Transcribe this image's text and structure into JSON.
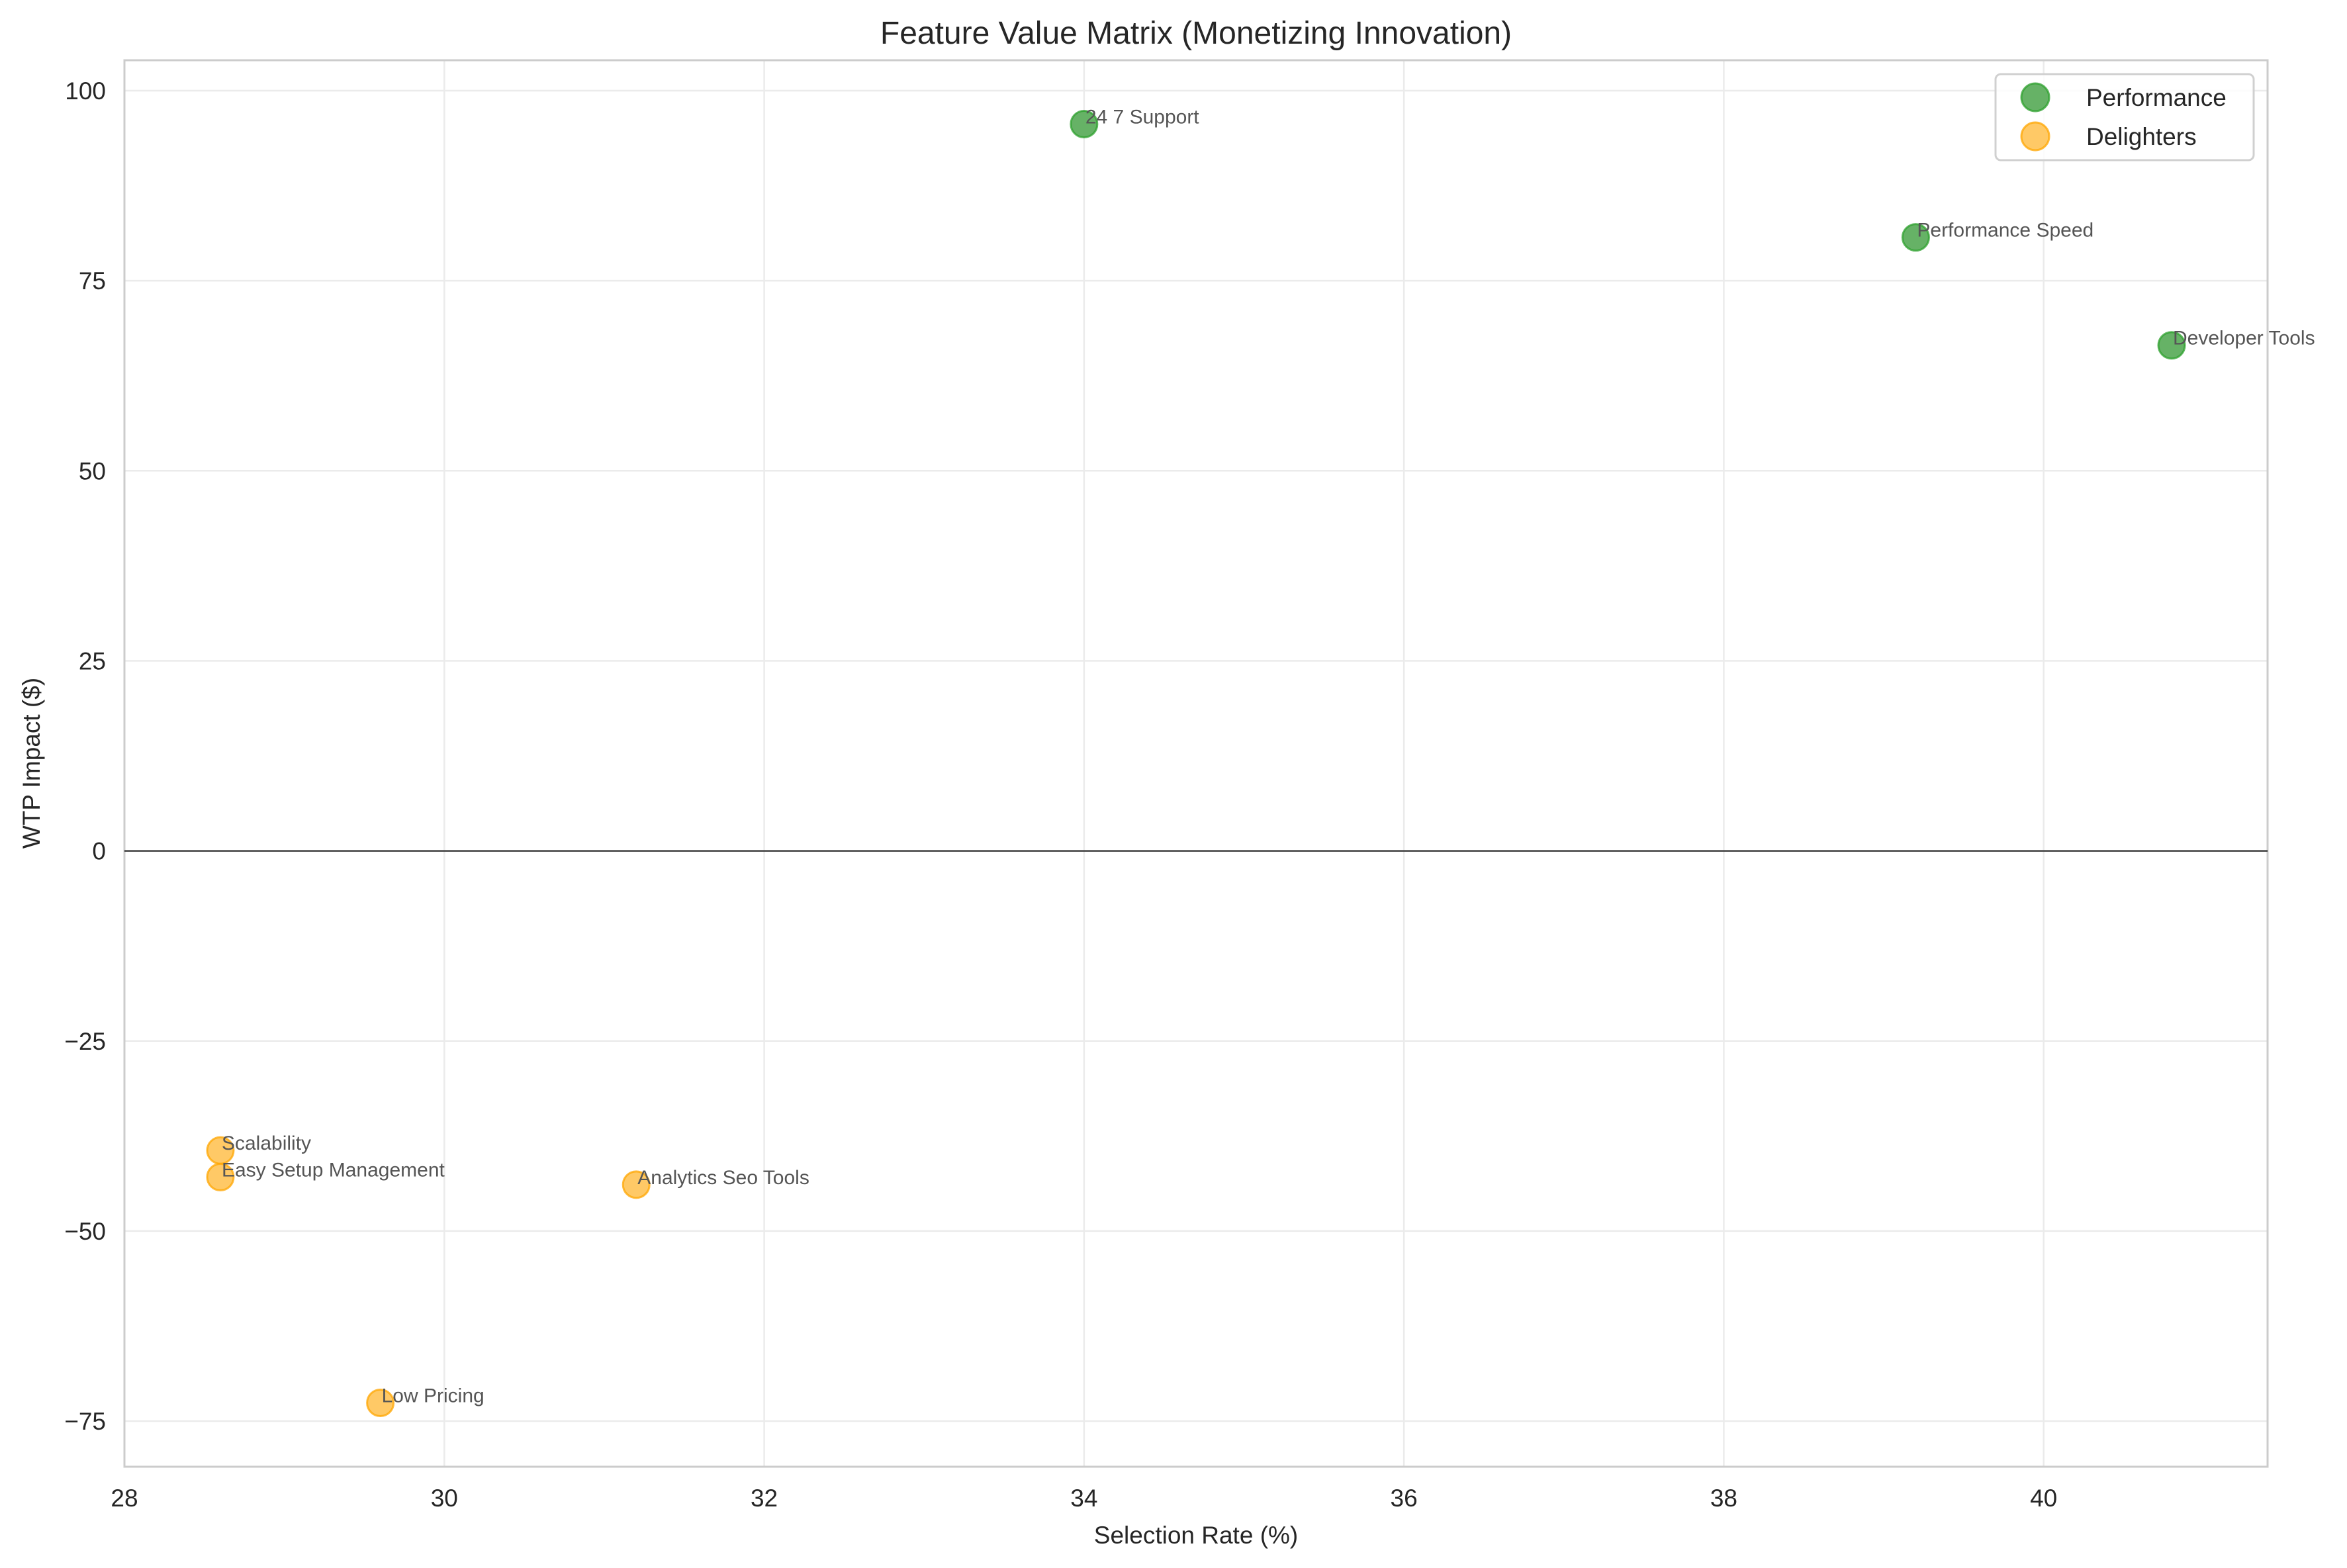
{
  "chart_data": {
    "type": "scatter",
    "title": "Feature Value Matrix (Monetizing Innovation)",
    "xlabel": "Selection Rate (%)",
    "ylabel": "WTP Impact ($)",
    "xlim": [
      28,
      41.4
    ],
    "ylim": [
      -81,
      104
    ],
    "xticks": [
      28,
      30,
      32,
      34,
      36,
      38,
      40
    ],
    "xtick_labels": [
      "28",
      "30",
      "32",
      "34",
      "36",
      "38",
      "40"
    ],
    "yticks": [
      -75,
      -50,
      -25,
      0,
      25,
      50,
      75,
      100
    ],
    "ytick_labels": [
      "−75",
      "−50",
      "−25",
      "0",
      "25",
      "50",
      "75",
      "100"
    ],
    "grid": true,
    "reference_line": {
      "y": 0,
      "color": "#000000"
    },
    "legend_position": "upper right",
    "series": [
      {
        "name": "Performance",
        "color": "#2ca02c",
        "fill": "#66b266",
        "points": [
          {
            "label": "24 7 Support",
            "x": 34.0,
            "y": 95.6
          },
          {
            "label": "Performance Speed",
            "x": 39.2,
            "y": 80.7
          },
          {
            "label": "Developer Tools",
            "x": 40.8,
            "y": 66.5
          }
        ]
      },
      {
        "name": "Delighters",
        "color": "#ffa500",
        "fill": "#ffc966",
        "points": [
          {
            "label": "Scalability",
            "x": 28.6,
            "y": -39.4
          },
          {
            "label": "Easy Setup Management",
            "x": 28.6,
            "y": -42.9
          },
          {
            "label": "Analytics Seo Tools",
            "x": 31.2,
            "y": -43.9
          },
          {
            "label": "Low Pricing",
            "x": 29.6,
            "y": -72.6
          }
        ]
      }
    ]
  }
}
